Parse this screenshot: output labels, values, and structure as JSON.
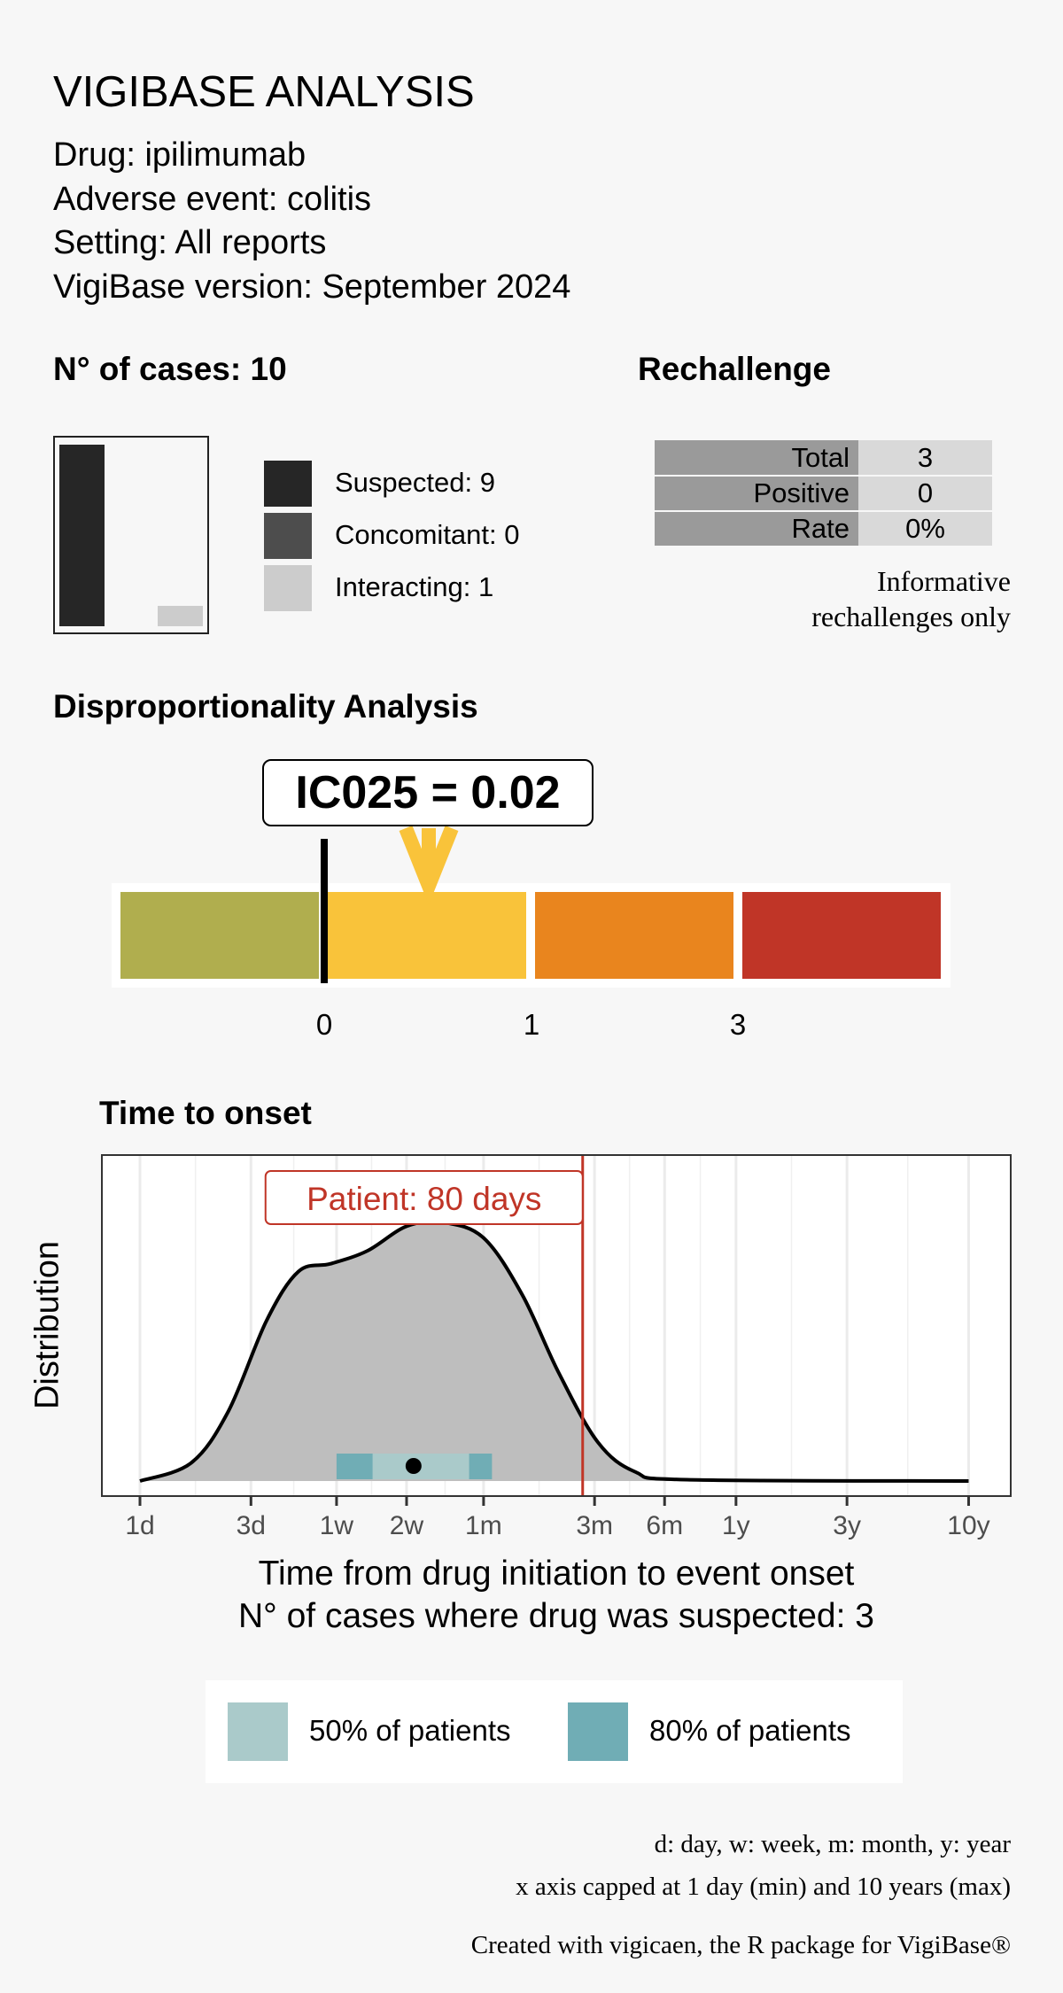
{
  "title": "VIGIBASE ANALYSIS",
  "info": [
    "Drug: ipilimumab",
    "Adverse event: colitis",
    "Setting: All reports",
    "VigiBase version: September 2024"
  ],
  "cases": {
    "heading": "N° of cases: 10",
    "legend": [
      {
        "label": "Suspected: 9",
        "value": 9,
        "color": "#262626"
      },
      {
        "label": "Concomitant: 0",
        "value": 0,
        "color": "#4d4d4d"
      },
      {
        "label": "Interacting: 1",
        "value": 1,
        "color": "#cccccc"
      }
    ]
  },
  "rechallenge": {
    "heading": "Rechallenge",
    "rows": [
      {
        "k": "Total",
        "v": "3"
      },
      {
        "k": "Positive",
        "v": "0"
      },
      {
        "k": "Rate",
        "v": "0%"
      }
    ],
    "note": [
      "Informative",
      "rechallenges only"
    ]
  },
  "disproportionality": {
    "heading": "Disproportionality Analysis",
    "label": "IC025 = 0.02",
    "segments": [
      "#b0ae4e",
      "#f9c33a",
      "#e9851e",
      "#c03527"
    ],
    "ticks": [
      "0",
      "1",
      "3"
    ],
    "arrow_color": "#f9c33a"
  },
  "chart_data": {
    "type": "area",
    "title": "Time to onset",
    "xlabel": "Time from drug initiation to event onset",
    "xlabel2": "N° of cases where drug was suspected: 3",
    "ylabel": "Distribution",
    "xscale": "log",
    "xlim_days": [
      1,
      3650
    ],
    "xticks": [
      {
        "label": "1d",
        "days": 1
      },
      {
        "label": "3d",
        "days": 3
      },
      {
        "label": "1w",
        "days": 7
      },
      {
        "label": "2w",
        "days": 14
      },
      {
        "label": "1m",
        "days": 30
      },
      {
        "label": "3m",
        "days": 90
      },
      {
        "label": "6m",
        "days": 180
      },
      {
        "label": "1y",
        "days": 365
      },
      {
        "label": "3y",
        "days": 1095
      },
      {
        "label": "10y",
        "days": 3650
      }
    ],
    "density": {
      "days": [
        1,
        1.66,
        2.4,
        3.5,
        4.8,
        6.6,
        9.5,
        14,
        20,
        30,
        44,
        63,
        93,
        135,
        224,
        3650
      ],
      "values": [
        0,
        0.07,
        0.27,
        0.62,
        0.81,
        0.84,
        0.89,
        0.985,
        1.0,
        0.94,
        0.72,
        0.42,
        0.15,
        0.035,
        0.005,
        0
      ]
    },
    "patient": {
      "label": "Patient: 80 days",
      "days": 80,
      "color": "#c03527"
    },
    "range80": [
      7,
      32.6
    ],
    "range50": [
      10,
      26
    ],
    "median_days": 15,
    "legend": [
      {
        "label": "50% of patients",
        "color": "#aacaca"
      },
      {
        "label": "80% of patients",
        "color": "#70adb5"
      }
    ],
    "legend_placement": "bottom",
    "grid": true
  },
  "notes": [
    "d: day, w: week, m: month, y: year",
    "x axis capped at 1 day (min) and 10 years (max)"
  ],
  "footer": "Created with vigicaen, the R package for VigiBase®"
}
